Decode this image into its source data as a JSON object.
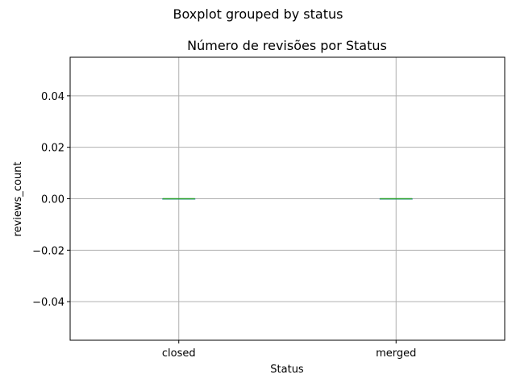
{
  "chart_data": {
    "type": "boxplot",
    "suptitle": "Boxplot grouped by status",
    "title": "Número de revisões por Status",
    "xlabel": "Status",
    "ylabel": "reviews_count",
    "categories": [
      "closed",
      "merged"
    ],
    "boxes": [
      {
        "category": "closed",
        "min": 0.0,
        "q1": 0.0,
        "median": 0.0,
        "q3": 0.0,
        "max": 0.0
      },
      {
        "category": "merged",
        "min": 0.0,
        "q1": 0.0,
        "median": 0.0,
        "q3": 0.0,
        "max": 0.0
      }
    ],
    "ylim": [
      -0.055,
      0.055
    ],
    "yticks": [
      -0.04,
      -0.02,
      0.0,
      0.02,
      0.04
    ],
    "ytick_labels": [
      "−0.04",
      "−0.02",
      "0.00",
      "0.02",
      "0.04"
    ],
    "grid": true,
    "median_color": "#2ca02c",
    "box_color": "#1f77b4",
    "grid_color": "#b0b0b0"
  }
}
